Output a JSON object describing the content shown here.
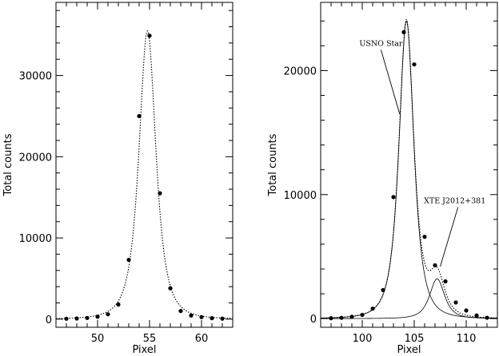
{
  "chart_data": [
    {
      "type": "scatter",
      "xlabel": "Pixel",
      "ylabel": "Total counts",
      "xlim": [
        46,
        63
      ],
      "ylim": [
        -1000,
        39000
      ],
      "x_ticks": [
        50,
        55,
        60
      ],
      "y_ticks": [
        0,
        10000,
        20000,
        30000
      ],
      "x_minor_step": 1,
      "y_minor_step": 2000,
      "series": [
        {
          "style": "points",
          "x": [
            47,
            48,
            49,
            50,
            51,
            52,
            53,
            54,
            55,
            56,
            57,
            58,
            59,
            60,
            61,
            62
          ],
          "y": [
            50,
            80,
            150,
            300,
            600,
            1800,
            7300,
            25000,
            34900,
            15500,
            3800,
            1000,
            450,
            250,
            120,
            60
          ]
        },
        {
          "style": "dotted-line",
          "function": "moffat",
          "peak_x": 54.8,
          "peak_y": 35500,
          "width": 1.3,
          "beta": 1.6
        }
      ]
    },
    {
      "type": "scatter",
      "xlabel": "Pixel",
      "ylabel": "Total counts",
      "xlim": [
        96,
        113
      ],
      "ylim": [
        -700,
        25500
      ],
      "x_ticks": [
        100,
        105,
        110
      ],
      "y_ticks": [
        0,
        10000,
        20000
      ],
      "x_minor_step": 1,
      "y_minor_step": 2000,
      "series": [
        {
          "style": "points",
          "x": [
            97,
            98,
            99,
            100,
            101,
            102,
            103,
            104,
            105,
            106,
            107,
            108,
            109,
            110,
            111,
            112
          ],
          "y": [
            30,
            60,
            150,
            300,
            800,
            2300,
            9800,
            23100,
            20500,
            6600,
            4300,
            3000,
            1300,
            650,
            250,
            70
          ]
        },
        {
          "style": "solid-line",
          "function": "moffat",
          "peak_x": 104.25,
          "peak_y": 24000,
          "width": 1.15,
          "beta": 1.6
        },
        {
          "style": "solid-line",
          "function": "moffat",
          "peak_x": 107.2,
          "peak_y": 3200,
          "width": 1.15,
          "beta": 1.6
        },
        {
          "style": "dotted-line",
          "function": "sum"
        }
      ],
      "annotations": [
        {
          "text": "USNO Star",
          "x": 101.8,
          "y": 22000,
          "arrow_to": [
            103.6,
            16500
          ]
        },
        {
          "text": "XTE J2012+381",
          "x": 108.9,
          "y": 9300,
          "arrow_to": [
            107.5,
            4200
          ]
        }
      ]
    }
  ]
}
